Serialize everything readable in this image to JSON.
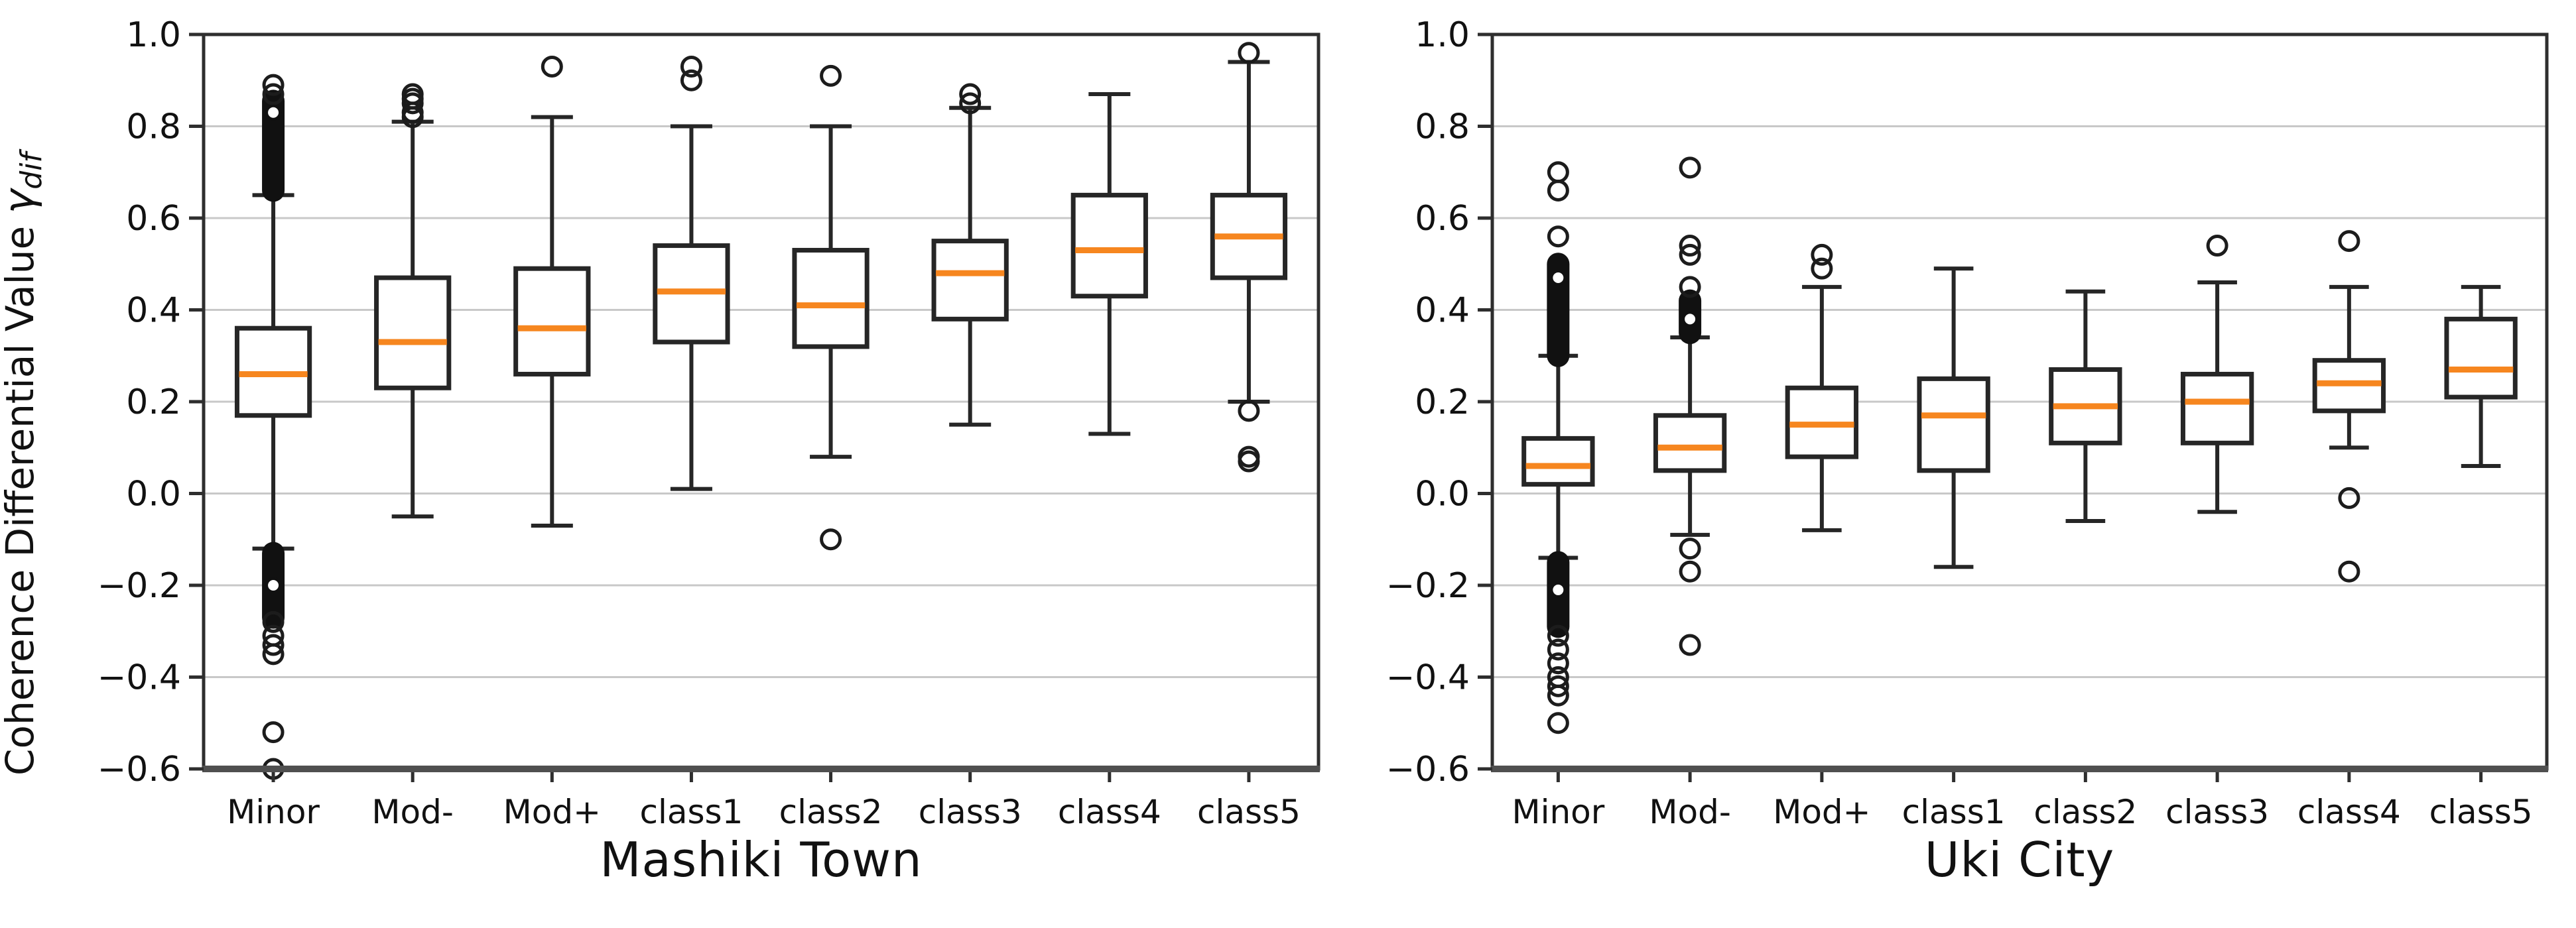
{
  "figure": {
    "ylabel": "Coherence Differential Value ",
    "ylabel_symbol": "γ",
    "ylabel_subscript": "dif",
    "background": "#ffffff",
    "box_color": "#262626",
    "median_color": "#f6861f",
    "grid_color": "#c8c8c8",
    "spine_color": "#2e2e2e",
    "bottom_spine_color": "#4f4f4f",
    "outlier_color": "#1c1c1c"
  },
  "chart_data": [
    {
      "type": "boxplot",
      "title": "Mashiki Town",
      "ylim": [
        -0.6,
        1.0
      ],
      "grid": true,
      "yticks": [
        {
          "value": 1.0,
          "label": "1.0"
        },
        {
          "value": 0.8,
          "label": "0.8"
        },
        {
          "value": 0.6,
          "label": "0.6"
        },
        {
          "value": 0.4,
          "label": "0.4"
        },
        {
          "value": 0.2,
          "label": "0.2"
        },
        {
          "value": 0.0,
          "label": "0.0"
        },
        {
          "value": -0.2,
          "label": "−0.2"
        },
        {
          "value": -0.4,
          "label": "−0.4"
        },
        {
          "value": -0.6,
          "label": "−0.6"
        }
      ],
      "categories": [
        "Minor",
        "Mod-",
        "Mod+",
        "class1",
        "class2",
        "class3",
        "class4",
        "class5"
      ],
      "series": [
        {
          "label": "Minor",
          "whisker_low": -0.12,
          "q1": 0.17,
          "median": 0.26,
          "q3": 0.36,
          "whisker_high": 0.65,
          "cluster_high": [
            0.66,
            0.855
          ],
          "cluster_low": [
            -0.13,
            -0.27
          ],
          "outliers_high": [
            0.87,
            0.89
          ],
          "outliers_low": [
            -0.28,
            -0.31,
            -0.33,
            -0.35,
            -0.52,
            -0.6
          ],
          "holes_high": [
            0.83
          ],
          "holes_low": [
            -0.2
          ]
        },
        {
          "label": "Mod-",
          "whisker_low": -0.05,
          "q1": 0.23,
          "median": 0.33,
          "q3": 0.47,
          "whisker_high": 0.81,
          "cluster_high": null,
          "cluster_low": null,
          "outliers_high": [
            0.82,
            0.83,
            0.85,
            0.86,
            0.87
          ],
          "outliers_low": [],
          "holes_high": [],
          "holes_low": []
        },
        {
          "label": "Mod+",
          "whisker_low": -0.07,
          "q1": 0.26,
          "median": 0.36,
          "q3": 0.49,
          "whisker_high": 0.82,
          "cluster_high": null,
          "cluster_low": null,
          "outliers_high": [
            0.93
          ],
          "outliers_low": [],
          "holes_high": [],
          "holes_low": []
        },
        {
          "label": "class1",
          "whisker_low": 0.01,
          "q1": 0.33,
          "median": 0.44,
          "q3": 0.54,
          "whisker_high": 0.8,
          "cluster_high": null,
          "cluster_low": null,
          "outliers_high": [
            0.9,
            0.93
          ],
          "outliers_low": [],
          "holes_high": [],
          "holes_low": []
        },
        {
          "label": "class2",
          "whisker_low": 0.08,
          "q1": 0.32,
          "median": 0.41,
          "q3": 0.53,
          "whisker_high": 0.8,
          "cluster_high": null,
          "cluster_low": null,
          "outliers_high": [
            0.91
          ],
          "outliers_low": [
            -0.1
          ],
          "holes_high": [],
          "holes_low": []
        },
        {
          "label": "class3",
          "whisker_low": 0.15,
          "q1": 0.38,
          "median": 0.48,
          "q3": 0.55,
          "whisker_high": 0.84,
          "cluster_high": null,
          "cluster_low": null,
          "outliers_high": [
            0.85,
            0.87
          ],
          "outliers_low": [],
          "holes_high": [],
          "holes_low": []
        },
        {
          "label": "class4",
          "whisker_low": 0.13,
          "q1": 0.43,
          "median": 0.53,
          "q3": 0.65,
          "whisker_high": 0.87,
          "cluster_high": null,
          "cluster_low": null,
          "outliers_high": [],
          "outliers_low": [],
          "holes_high": [],
          "holes_low": []
        },
        {
          "label": "class5",
          "whisker_low": 0.2,
          "q1": 0.47,
          "median": 0.56,
          "q3": 0.65,
          "whisker_high": 0.94,
          "cluster_high": null,
          "cluster_low": null,
          "outliers_high": [
            0.96
          ],
          "outliers_low": [
            0.18,
            0.08,
            0.07
          ],
          "holes_high": [],
          "holes_low": []
        }
      ]
    },
    {
      "type": "boxplot",
      "title": "Uki City",
      "ylim": [
        -0.6,
        1.0
      ],
      "grid": true,
      "yticks": [
        {
          "value": 1.0,
          "label": "1.0"
        },
        {
          "value": 0.8,
          "label": "0.8"
        },
        {
          "value": 0.6,
          "label": "0.6"
        },
        {
          "value": 0.4,
          "label": "0.4"
        },
        {
          "value": 0.2,
          "label": "0.2"
        },
        {
          "value": 0.0,
          "label": "0.0"
        },
        {
          "value": -0.2,
          "label": "−0.2"
        },
        {
          "value": -0.4,
          "label": "−0.4"
        },
        {
          "value": -0.6,
          "label": "−0.6"
        }
      ],
      "categories": [
        "Minor",
        "Mod-",
        "Mod+",
        "class1",
        "class2",
        "class3",
        "class4",
        "class5"
      ],
      "series": [
        {
          "label": "Minor",
          "whisker_low": -0.14,
          "q1": 0.02,
          "median": 0.06,
          "q3": 0.12,
          "whisker_high": 0.3,
          "cluster_high": [
            0.3,
            0.5
          ],
          "cluster_low": [
            -0.15,
            -0.29
          ],
          "outliers_high": [
            0.56,
            0.66,
            0.7
          ],
          "outliers_low": [
            -0.31,
            -0.34,
            -0.37,
            -0.4,
            -0.42,
            -0.44,
            -0.5
          ],
          "holes_high": [
            0.47
          ],
          "holes_low": [
            -0.21
          ]
        },
        {
          "label": "Mod-",
          "whisker_low": -0.09,
          "q1": 0.05,
          "median": 0.1,
          "q3": 0.17,
          "whisker_high": 0.34,
          "cluster_high": [
            0.35,
            0.42
          ],
          "cluster_low": null,
          "outliers_high": [
            0.45,
            0.52,
            0.54,
            0.71
          ],
          "outliers_low": [
            -0.12,
            -0.17,
            -0.33
          ],
          "holes_high": [
            0.38
          ],
          "holes_low": []
        },
        {
          "label": "Mod+",
          "whisker_low": -0.08,
          "q1": 0.08,
          "median": 0.15,
          "q3": 0.23,
          "whisker_high": 0.45,
          "cluster_high": null,
          "cluster_low": null,
          "outliers_high": [
            0.49,
            0.52
          ],
          "outliers_low": [],
          "holes_high": [],
          "holes_low": []
        },
        {
          "label": "class1",
          "whisker_low": -0.16,
          "q1": 0.05,
          "median": 0.17,
          "q3": 0.25,
          "whisker_high": 0.49,
          "cluster_high": null,
          "cluster_low": null,
          "outliers_high": [],
          "outliers_low": [],
          "holes_high": [],
          "holes_low": []
        },
        {
          "label": "class2",
          "whisker_low": -0.06,
          "q1": 0.11,
          "median": 0.19,
          "q3": 0.27,
          "whisker_high": 0.44,
          "cluster_high": null,
          "cluster_low": null,
          "outliers_high": [],
          "outliers_low": [],
          "holes_high": [],
          "holes_low": []
        },
        {
          "label": "class3",
          "whisker_low": -0.04,
          "q1": 0.11,
          "median": 0.2,
          "q3": 0.26,
          "whisker_high": 0.46,
          "cluster_high": null,
          "cluster_low": null,
          "outliers_high": [
            0.54
          ],
          "outliers_low": [],
          "holes_high": [],
          "holes_low": []
        },
        {
          "label": "class4",
          "whisker_low": 0.1,
          "q1": 0.18,
          "median": 0.24,
          "q3": 0.29,
          "whisker_high": 0.45,
          "cluster_high": null,
          "cluster_low": null,
          "outliers_high": [
            0.55
          ],
          "outliers_low": [
            -0.01,
            -0.17
          ],
          "holes_high": [],
          "holes_low": []
        },
        {
          "label": "class5",
          "whisker_low": 0.06,
          "q1": 0.21,
          "median": 0.27,
          "q3": 0.38,
          "whisker_high": 0.45,
          "cluster_high": null,
          "cluster_low": null,
          "outliers_high": [],
          "outliers_low": [],
          "holes_high": [],
          "holes_low": []
        }
      ]
    }
  ]
}
